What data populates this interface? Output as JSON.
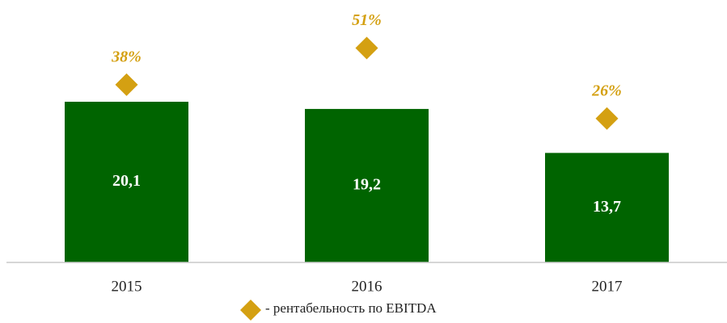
{
  "chart_data": {
    "type": "bar",
    "categories": [
      "2015",
      "2016",
      "2017"
    ],
    "series": [
      {
        "type": "bar",
        "color": "#006400",
        "values": [
          20.1,
          19.2,
          13.7
        ],
        "value_labels": [
          "20,1",
          "19,2",
          "13,7"
        ]
      },
      {
        "type": "diamond",
        "name": "- рентабельность по EBITDA",
        "color": "#d4a012",
        "axis": "y2",
        "values": [
          38,
          51,
          26
        ],
        "value_labels": [
          "38%",
          "51%",
          "26%"
        ]
      }
    ],
    "ylim": [
      0,
      30
    ],
    "y2lim": [
      -25,
      60
    ]
  }
}
